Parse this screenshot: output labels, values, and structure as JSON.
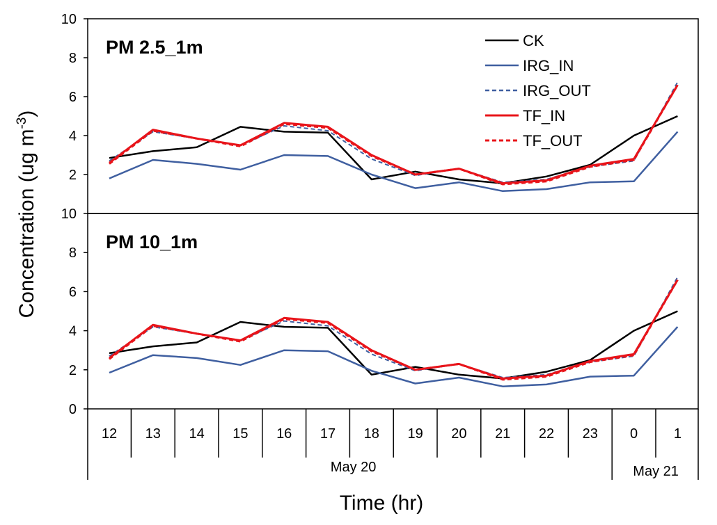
{
  "chart_data": [
    {
      "type": "line",
      "title": "PM 2.5_1m",
      "ylim": [
        0,
        10
      ],
      "yticks": [
        2,
        4,
        6,
        8,
        10
      ],
      "categories": [
        "12",
        "13",
        "14",
        "15",
        "16",
        "17",
        "18",
        "19",
        "20",
        "21",
        "22",
        "23",
        "0",
        "1"
      ],
      "series": [
        {
          "name": "CK",
          "color": "#000000",
          "dash": "solid",
          "values": [
            2.85,
            3.2,
            3.4,
            4.45,
            4.2,
            4.15,
            1.75,
            2.15,
            1.75,
            1.55,
            1.9,
            2.5,
            4.0,
            5.0
          ]
        },
        {
          "name": "IRG_IN",
          "color": "#3F5FA0",
          "dash": "solid",
          "values": [
            1.8,
            2.75,
            2.55,
            2.25,
            3.0,
            2.95,
            2.0,
            1.3,
            1.6,
            1.15,
            1.25,
            1.6,
            1.65,
            4.2
          ]
        },
        {
          "name": "IRG_OUT",
          "color": "#3F5FA0",
          "dash": "dashed",
          "values": [
            2.7,
            4.2,
            3.85,
            3.5,
            4.5,
            4.25,
            2.8,
            1.95,
            2.3,
            1.6,
            1.75,
            2.4,
            2.7,
            6.75
          ]
        },
        {
          "name": "TF_IN",
          "color": "#E8141A",
          "dash": "solid",
          "values": [
            2.6,
            4.3,
            3.85,
            3.5,
            4.65,
            4.45,
            3.0,
            2.0,
            2.3,
            1.55,
            1.7,
            2.45,
            2.8,
            6.6
          ]
        },
        {
          "name": "TF_OUT",
          "color": "#E8141A",
          "dash": "dashed",
          "values": [
            2.55,
            4.25,
            3.85,
            3.45,
            4.6,
            4.4,
            2.95,
            2.0,
            2.3,
            1.5,
            1.65,
            2.4,
            2.75,
            6.6
          ]
        }
      ]
    },
    {
      "type": "line",
      "title": "PM 10_1m",
      "ylim": [
        0,
        10
      ],
      "yticks": [
        0,
        2,
        4,
        6,
        8,
        10
      ],
      "categories": [
        "12",
        "13",
        "14",
        "15",
        "16",
        "17",
        "18",
        "19",
        "20",
        "21",
        "22",
        "23",
        "0",
        "1"
      ],
      "series": [
        {
          "name": "CK",
          "color": "#000000",
          "dash": "solid",
          "values": [
            2.85,
            3.2,
            3.4,
            4.45,
            4.2,
            4.15,
            1.75,
            2.15,
            1.75,
            1.55,
            1.9,
            2.5,
            4.0,
            5.0
          ]
        },
        {
          "name": "IRG_IN",
          "color": "#3F5FA0",
          "dash": "solid",
          "values": [
            1.85,
            2.75,
            2.6,
            2.25,
            3.0,
            2.95,
            1.95,
            1.3,
            1.6,
            1.15,
            1.25,
            1.65,
            1.7,
            4.2
          ]
        },
        {
          "name": "IRG_OUT",
          "color": "#3F5FA0",
          "dash": "dashed",
          "values": [
            2.7,
            4.2,
            3.85,
            3.5,
            4.5,
            4.25,
            2.8,
            1.95,
            2.3,
            1.6,
            1.75,
            2.4,
            2.7,
            6.75
          ]
        },
        {
          "name": "TF_IN",
          "color": "#E8141A",
          "dash": "solid",
          "values": [
            2.6,
            4.3,
            3.85,
            3.5,
            4.65,
            4.45,
            3.0,
            2.0,
            2.3,
            1.55,
            1.7,
            2.45,
            2.8,
            6.6
          ]
        },
        {
          "name": "TF_OUT",
          "color": "#E8141A",
          "dash": "dashed",
          "values": [
            2.55,
            4.25,
            3.85,
            3.45,
            4.6,
            4.4,
            2.95,
            2.0,
            2.3,
            1.5,
            1.65,
            2.4,
            2.75,
            6.6
          ]
        }
      ]
    }
  ],
  "legend": {
    "position": "top-right",
    "entries": [
      {
        "label": "CK",
        "color": "#000000",
        "dash": "solid"
      },
      {
        "label": "IRG_IN",
        "color": "#3F5FA0",
        "dash": "solid"
      },
      {
        "label": "IRG_OUT",
        "color": "#3F5FA0",
        "dash": "dashed"
      },
      {
        "label": "TF_IN",
        "color": "#E8141A",
        "dash": "solid"
      },
      {
        "label": "TF_OUT",
        "color": "#E8141A",
        "dash": "dashed"
      }
    ]
  },
  "x_axis": {
    "label": "Time (hr)",
    "groups": [
      {
        "label": "May 20",
        "from": "12",
        "to": "23"
      },
      {
        "label": "May 21",
        "from": "0",
        "to": "1"
      }
    ]
  },
  "y_axis": {
    "label_main": "Concentration (ug m",
    "label_sup": "-3",
    "label_end": ")"
  }
}
